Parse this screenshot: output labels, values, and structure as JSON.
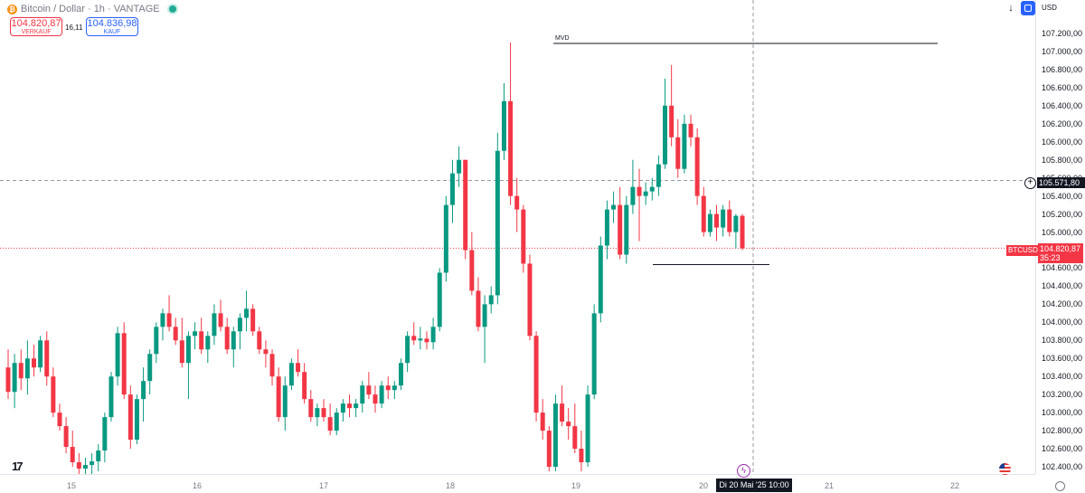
{
  "header": {
    "coin_icon": "bitcoin-icon",
    "title": "Bitcoin / Dollar · 1h · VANTAGE",
    "status_color": "#22ab94"
  },
  "trade": {
    "sell_price": "104.820,87",
    "sell_label": "VERKAUF",
    "spread": "16,11",
    "buy_price": "104.836,98",
    "buy_label": "KAUF"
  },
  "toolbar": {
    "currency": "USD",
    "arrow_icon": "down-arrow-icon",
    "toggle_icon": "scale-toggle-icon"
  },
  "price_axis": {
    "ticks": [
      "107.200,00",
      "107.000,00",
      "106.800,00",
      "106.600,00",
      "106.400,00",
      "106.200,00",
      "106.000,00",
      "105.800,00",
      "105.600,00",
      "105.400,00",
      "105.200,00",
      "105.000,00",
      "104.800,00",
      "104.600,00",
      "104.400,00",
      "104.200,00",
      "104.000,00",
      "103.800,00",
      "103.600,00",
      "103.400,00",
      "103.200,00",
      "103.000,00",
      "102.800,00",
      "102.600,00",
      "102.400,00"
    ],
    "crosshair_price": "105.571,80",
    "symbol_tag": "BTCUSD",
    "last_price": "104.820,87",
    "countdown": "35:23"
  },
  "time_axis": {
    "labels": [
      "15",
      "16",
      "17",
      "18",
      "19",
      "20",
      "21",
      "22"
    ],
    "crosshair_date": "Di 20 Mai '25   10:00"
  },
  "annotations": {
    "mvd_label": "MVD"
  },
  "colors": {
    "up": "#089981",
    "down": "#f23645",
    "crosshair": "#9598a1"
  },
  "chart_data": {
    "type": "candlestick",
    "title": "Bitcoin / Dollar · 1h · VANTAGE",
    "xlabel": "",
    "ylabel": "",
    "ylim": [
      102300,
      107300
    ],
    "x_labels": [
      "15",
      "16",
      "17",
      "18",
      "19",
      "20",
      "21",
      "22"
    ],
    "last_price": 104820.87,
    "crosshair_price": 105571.8,
    "levels": [
      {
        "name": "MVD",
        "price": 107090
      },
      {
        "name": "",
        "price": 104640
      }
    ],
    "candles": [
      {
        "o": 103500,
        "h": 103700,
        "l": 103150,
        "c": 103230
      },
      {
        "o": 103230,
        "h": 103650,
        "l": 103050,
        "c": 103550
      },
      {
        "o": 103550,
        "h": 103700,
        "l": 103250,
        "c": 103380
      },
      {
        "o": 103380,
        "h": 103800,
        "l": 103200,
        "c": 103600
      },
      {
        "o": 103600,
        "h": 103750,
        "l": 103400,
        "c": 103500
      },
      {
        "o": 103500,
        "h": 103850,
        "l": 103450,
        "c": 103800
      },
      {
        "o": 103800,
        "h": 103900,
        "l": 103300,
        "c": 103400
      },
      {
        "o": 103400,
        "h": 103500,
        "l": 102950,
        "c": 103000
      },
      {
        "o": 103000,
        "h": 103100,
        "l": 102800,
        "c": 102850
      },
      {
        "o": 102850,
        "h": 102950,
        "l": 102550,
        "c": 102620
      },
      {
        "o": 102620,
        "h": 102800,
        "l": 102400,
        "c": 102450
      },
      {
        "o": 102450,
        "h": 102550,
        "l": 102300,
        "c": 102380
      },
      {
        "o": 102380,
        "h": 102500,
        "l": 102300,
        "c": 102420
      },
      {
        "o": 102420,
        "h": 102550,
        "l": 102300,
        "c": 102460
      },
      {
        "o": 102460,
        "h": 102650,
        "l": 102350,
        "c": 102580
      },
      {
        "o": 102580,
        "h": 103000,
        "l": 102450,
        "c": 102950
      },
      {
        "o": 102950,
        "h": 103450,
        "l": 102900,
        "c": 103400
      },
      {
        "o": 103400,
        "h": 103950,
        "l": 103300,
        "c": 103880
      },
      {
        "o": 103880,
        "h": 104000,
        "l": 103150,
        "c": 103200
      },
      {
        "o": 103200,
        "h": 103300,
        "l": 102600,
        "c": 102700
      },
      {
        "o": 102700,
        "h": 103200,
        "l": 102650,
        "c": 103150
      },
      {
        "o": 103150,
        "h": 103500,
        "l": 102900,
        "c": 103350
      },
      {
        "o": 103350,
        "h": 103700,
        "l": 103200,
        "c": 103650
      },
      {
        "o": 103650,
        "h": 104000,
        "l": 103550,
        "c": 103950
      },
      {
        "o": 103950,
        "h": 104150,
        "l": 103800,
        "c": 104100
      },
      {
        "o": 104100,
        "h": 104300,
        "l": 103900,
        "c": 103950
      },
      {
        "o": 103950,
        "h": 104050,
        "l": 103750,
        "c": 103800
      },
      {
        "o": 103800,
        "h": 104050,
        "l": 103500,
        "c": 103550
      },
      {
        "o": 103550,
        "h": 103900,
        "l": 103150,
        "c": 103850
      },
      {
        "o": 103850,
        "h": 104000,
        "l": 103700,
        "c": 103900
      },
      {
        "o": 103900,
        "h": 104050,
        "l": 103650,
        "c": 103700
      },
      {
        "o": 103700,
        "h": 103900,
        "l": 103550,
        "c": 103850
      },
      {
        "o": 103850,
        "h": 104200,
        "l": 103750,
        "c": 104100
      },
      {
        "o": 104100,
        "h": 104250,
        "l": 103900,
        "c": 103950
      },
      {
        "o": 103950,
        "h": 104050,
        "l": 103650,
        "c": 103700
      },
      {
        "o": 103700,
        "h": 103950,
        "l": 103500,
        "c": 103900
      },
      {
        "o": 103900,
        "h": 104100,
        "l": 103700,
        "c": 104050
      },
      {
        "o": 104050,
        "h": 104350,
        "l": 103900,
        "c": 104150
      },
      {
        "o": 104150,
        "h": 104200,
        "l": 103850,
        "c": 103900
      },
      {
        "o": 103900,
        "h": 103950,
        "l": 103650,
        "c": 103700
      },
      {
        "o": 103700,
        "h": 103800,
        "l": 103500,
        "c": 103650
      },
      {
        "o": 103650,
        "h": 103700,
        "l": 103300,
        "c": 103400
      },
      {
        "o": 103400,
        "h": 103500,
        "l": 102900,
        "c": 102950
      },
      {
        "o": 102950,
        "h": 103400,
        "l": 102800,
        "c": 103300
      },
      {
        "o": 103300,
        "h": 103600,
        "l": 103250,
        "c": 103550
      },
      {
        "o": 103550,
        "h": 103700,
        "l": 103400,
        "c": 103450
      },
      {
        "o": 103450,
        "h": 103550,
        "l": 103100,
        "c": 103150
      },
      {
        "o": 103150,
        "h": 103250,
        "l": 102900,
        "c": 102950
      },
      {
        "o": 102950,
        "h": 103100,
        "l": 102850,
        "c": 103050
      },
      {
        "o": 103050,
        "h": 103150,
        "l": 102900,
        "c": 102950
      },
      {
        "o": 102950,
        "h": 103100,
        "l": 102750,
        "c": 102800
      },
      {
        "o": 102800,
        "h": 103050,
        "l": 102750,
        "c": 103000
      },
      {
        "o": 103000,
        "h": 103150,
        "l": 102900,
        "c": 103100
      },
      {
        "o": 103100,
        "h": 103200,
        "l": 102950,
        "c": 103050
      },
      {
        "o": 103050,
        "h": 103150,
        "l": 102950,
        "c": 103100
      },
      {
        "o": 103100,
        "h": 103350,
        "l": 103000,
        "c": 103300
      },
      {
        "o": 103300,
        "h": 103450,
        "l": 103150,
        "c": 103200
      },
      {
        "o": 103200,
        "h": 103300,
        "l": 103000,
        "c": 103100
      },
      {
        "o": 103100,
        "h": 103350,
        "l": 103050,
        "c": 103300
      },
      {
        "o": 103300,
        "h": 103400,
        "l": 103150,
        "c": 103250
      },
      {
        "o": 103250,
        "h": 103350,
        "l": 103150,
        "c": 103300
      },
      {
        "o": 103300,
        "h": 103600,
        "l": 103250,
        "c": 103550
      },
      {
        "o": 103550,
        "h": 103900,
        "l": 103450,
        "c": 103850
      },
      {
        "o": 103850,
        "h": 104000,
        "l": 103750,
        "c": 103800
      },
      {
        "o": 103800,
        "h": 103950,
        "l": 103700,
        "c": 103820
      },
      {
        "o": 103820,
        "h": 103900,
        "l": 103700,
        "c": 103780
      },
      {
        "o": 103780,
        "h": 104050,
        "l": 103700,
        "c": 103950
      },
      {
        "o": 103950,
        "h": 104600,
        "l": 103900,
        "c": 104550
      },
      {
        "o": 104550,
        "h": 105400,
        "l": 104450,
        "c": 105300
      },
      {
        "o": 105300,
        "h": 105800,
        "l": 105100,
        "c": 105650
      },
      {
        "o": 105650,
        "h": 105950,
        "l": 105500,
        "c": 105800
      },
      {
        "o": 105800,
        "h": 105800,
        "l": 104700,
        "c": 104800
      },
      {
        "o": 104800,
        "h": 105000,
        "l": 104300,
        "c": 104350
      },
      {
        "o": 104350,
        "h": 104500,
        "l": 103900,
        "c": 103950
      },
      {
        "o": 103950,
        "h": 104300,
        "l": 103550,
        "c": 104200
      },
      {
        "o": 104200,
        "h": 104400,
        "l": 104100,
        "c": 104300
      },
      {
        "o": 104300,
        "h": 106100,
        "l": 104200,
        "c": 105900
      },
      {
        "o": 105900,
        "h": 106650,
        "l": 105800,
        "c": 106450
      },
      {
        "o": 106450,
        "h": 107100,
        "l": 105300,
        "c": 105400
      },
      {
        "o": 105400,
        "h": 105600,
        "l": 105000,
        "c": 105250
      },
      {
        "o": 105250,
        "h": 105300,
        "l": 104550,
        "c": 104650
      },
      {
        "o": 104650,
        "h": 104750,
        "l": 103800,
        "c": 103850
      },
      {
        "o": 103850,
        "h": 103900,
        "l": 102900,
        "c": 103000
      },
      {
        "o": 103000,
        "h": 103150,
        "l": 102700,
        "c": 102800
      },
      {
        "o": 102800,
        "h": 102850,
        "l": 102350,
        "c": 102400
      },
      {
        "o": 102400,
        "h": 103200,
        "l": 102350,
        "c": 103100
      },
      {
        "o": 103100,
        "h": 103300,
        "l": 102850,
        "c": 102900
      },
      {
        "o": 102900,
        "h": 103050,
        "l": 102700,
        "c": 102850
      },
      {
        "o": 102850,
        "h": 103100,
        "l": 102550,
        "c": 102600
      },
      {
        "o": 102600,
        "h": 102800,
        "l": 102350,
        "c": 102450
      },
      {
        "o": 102450,
        "h": 103300,
        "l": 102400,
        "c": 103200
      },
      {
        "o": 103200,
        "h": 104200,
        "l": 103150,
        "c": 104100
      },
      {
        "o": 104100,
        "h": 104950,
        "l": 104000,
        "c": 104850
      },
      {
        "o": 104850,
        "h": 105350,
        "l": 104700,
        "c": 105250
      },
      {
        "o": 105250,
        "h": 105450,
        "l": 105100,
        "c": 105300
      },
      {
        "o": 105300,
        "h": 105500,
        "l": 104700,
        "c": 104750
      },
      {
        "o": 104750,
        "h": 105400,
        "l": 104650,
        "c": 105300
      },
      {
        "o": 105300,
        "h": 105800,
        "l": 105200,
        "c": 105500
      },
      {
        "o": 105500,
        "h": 105700,
        "l": 104900,
        "c": 105400
      },
      {
        "o": 105400,
        "h": 105550,
        "l": 105300,
        "c": 105450
      },
      {
        "o": 105450,
        "h": 105600,
        "l": 105350,
        "c": 105500
      },
      {
        "o": 105500,
        "h": 105850,
        "l": 105400,
        "c": 105750
      },
      {
        "o": 105750,
        "h": 106700,
        "l": 105700,
        "c": 106400
      },
      {
        "o": 106400,
        "h": 106850,
        "l": 105950,
        "c": 106050
      },
      {
        "o": 106050,
        "h": 106250,
        "l": 105600,
        "c": 105700
      },
      {
        "o": 105700,
        "h": 106300,
        "l": 105650,
        "c": 106200
      },
      {
        "o": 106200,
        "h": 106300,
        "l": 105950,
        "c": 106050
      },
      {
        "o": 106050,
        "h": 106150,
        "l": 105300,
        "c": 105400
      },
      {
        "o": 105400,
        "h": 105500,
        "l": 104950,
        "c": 105000
      },
      {
        "o": 105000,
        "h": 105250,
        "l": 104950,
        "c": 105200
      },
      {
        "o": 105200,
        "h": 105300,
        "l": 104900,
        "c": 105050
      },
      {
        "o": 105050,
        "h": 105300,
        "l": 104950,
        "c": 105250
      },
      {
        "o": 105250,
        "h": 105350,
        "l": 104950,
        "c": 105000
      },
      {
        "o": 105000,
        "h": 105200,
        "l": 104820,
        "c": 105180
      },
      {
        "o": 105180,
        "h": 105200,
        "l": 104800,
        "c": 104820
      }
    ]
  }
}
